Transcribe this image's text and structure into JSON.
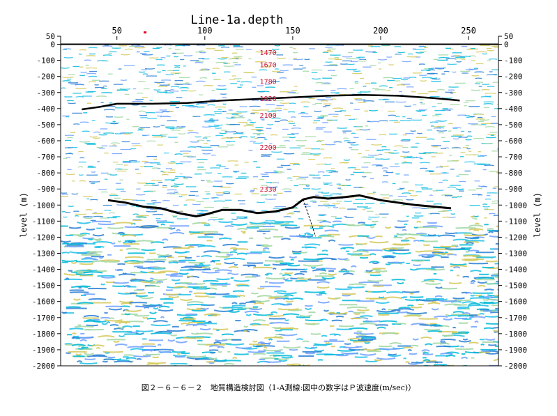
{
  "chart_data": {
    "type": "seismic-section",
    "title": "Line-1a.depth",
    "ylabel": "level (m)",
    "xlabel": "",
    "xlim": [
      18,
      267
    ],
    "ylim": [
      -2000,
      50
    ],
    "x_ticks": [
      50,
      100,
      150,
      200,
      250
    ],
    "y_ticks": [
      50,
      0,
      -100,
      -200,
      -300,
      -400,
      -500,
      -600,
      -700,
      -800,
      -900,
      -1000,
      -1100,
      -1200,
      -1300,
      -1400,
      -1500,
      -1600,
      -1700,
      -1800,
      -1900,
      -2000
    ],
    "grid": false,
    "colors": {
      "reflector": "#000000",
      "velocity_label": "#cc1133",
      "marker": "#e8002a",
      "seismic": [
        "#00b8d8",
        "#20c0e8",
        "#9fd6a0",
        "#d4c858",
        "#2a7fd4",
        "#6fa0ff"
      ]
    },
    "velocity_labels": [
      {
        "text": "1470",
        "x": 136,
        "y": -50
      },
      {
        "text": "1670",
        "x": 136,
        "y": -125
      },
      {
        "text": "1780",
        "x": 136,
        "y": -230
      },
      {
        "text": "1920",
        "x": 136,
        "y": -335
      },
      {
        "text": "2100",
        "x": 136,
        "y": -440
      },
      {
        "text": "2200",
        "x": 136,
        "y": -640
      },
      {
        "text": "2330",
        "x": 136,
        "y": -900
      }
    ],
    "horizon_shallow": {
      "x": [
        30,
        40,
        50,
        70,
        90,
        110,
        130,
        150,
        170,
        190,
        210,
        230,
        245
      ],
      "y": [
        -405,
        -390,
        -370,
        -370,
        -365,
        -350,
        -340,
        -330,
        -320,
        -315,
        -320,
        -335,
        -350
      ]
    },
    "horizon_deep": {
      "x": [
        45,
        55,
        65,
        75,
        85,
        95,
        100,
        110,
        120,
        130,
        140,
        150,
        156,
        162,
        170,
        180,
        188,
        200,
        220,
        240
      ],
      "y": [
        -970,
        -985,
        -1010,
        -1020,
        -1050,
        -1070,
        -1060,
        -1030,
        -1030,
        -1050,
        -1040,
        -1015,
        -965,
        -950,
        -960,
        -950,
        -940,
        -970,
        -1000,
        -1020
      ]
    },
    "fault_trace": {
      "x": [
        156,
        163
      ],
      "y": [
        -965,
        -1195
      ]
    },
    "marker_x": 66
  },
  "caption": "図２－６－６－２　地質構造検討図（1-A測線:図中の数字はＰ波速度(m/sec)）"
}
